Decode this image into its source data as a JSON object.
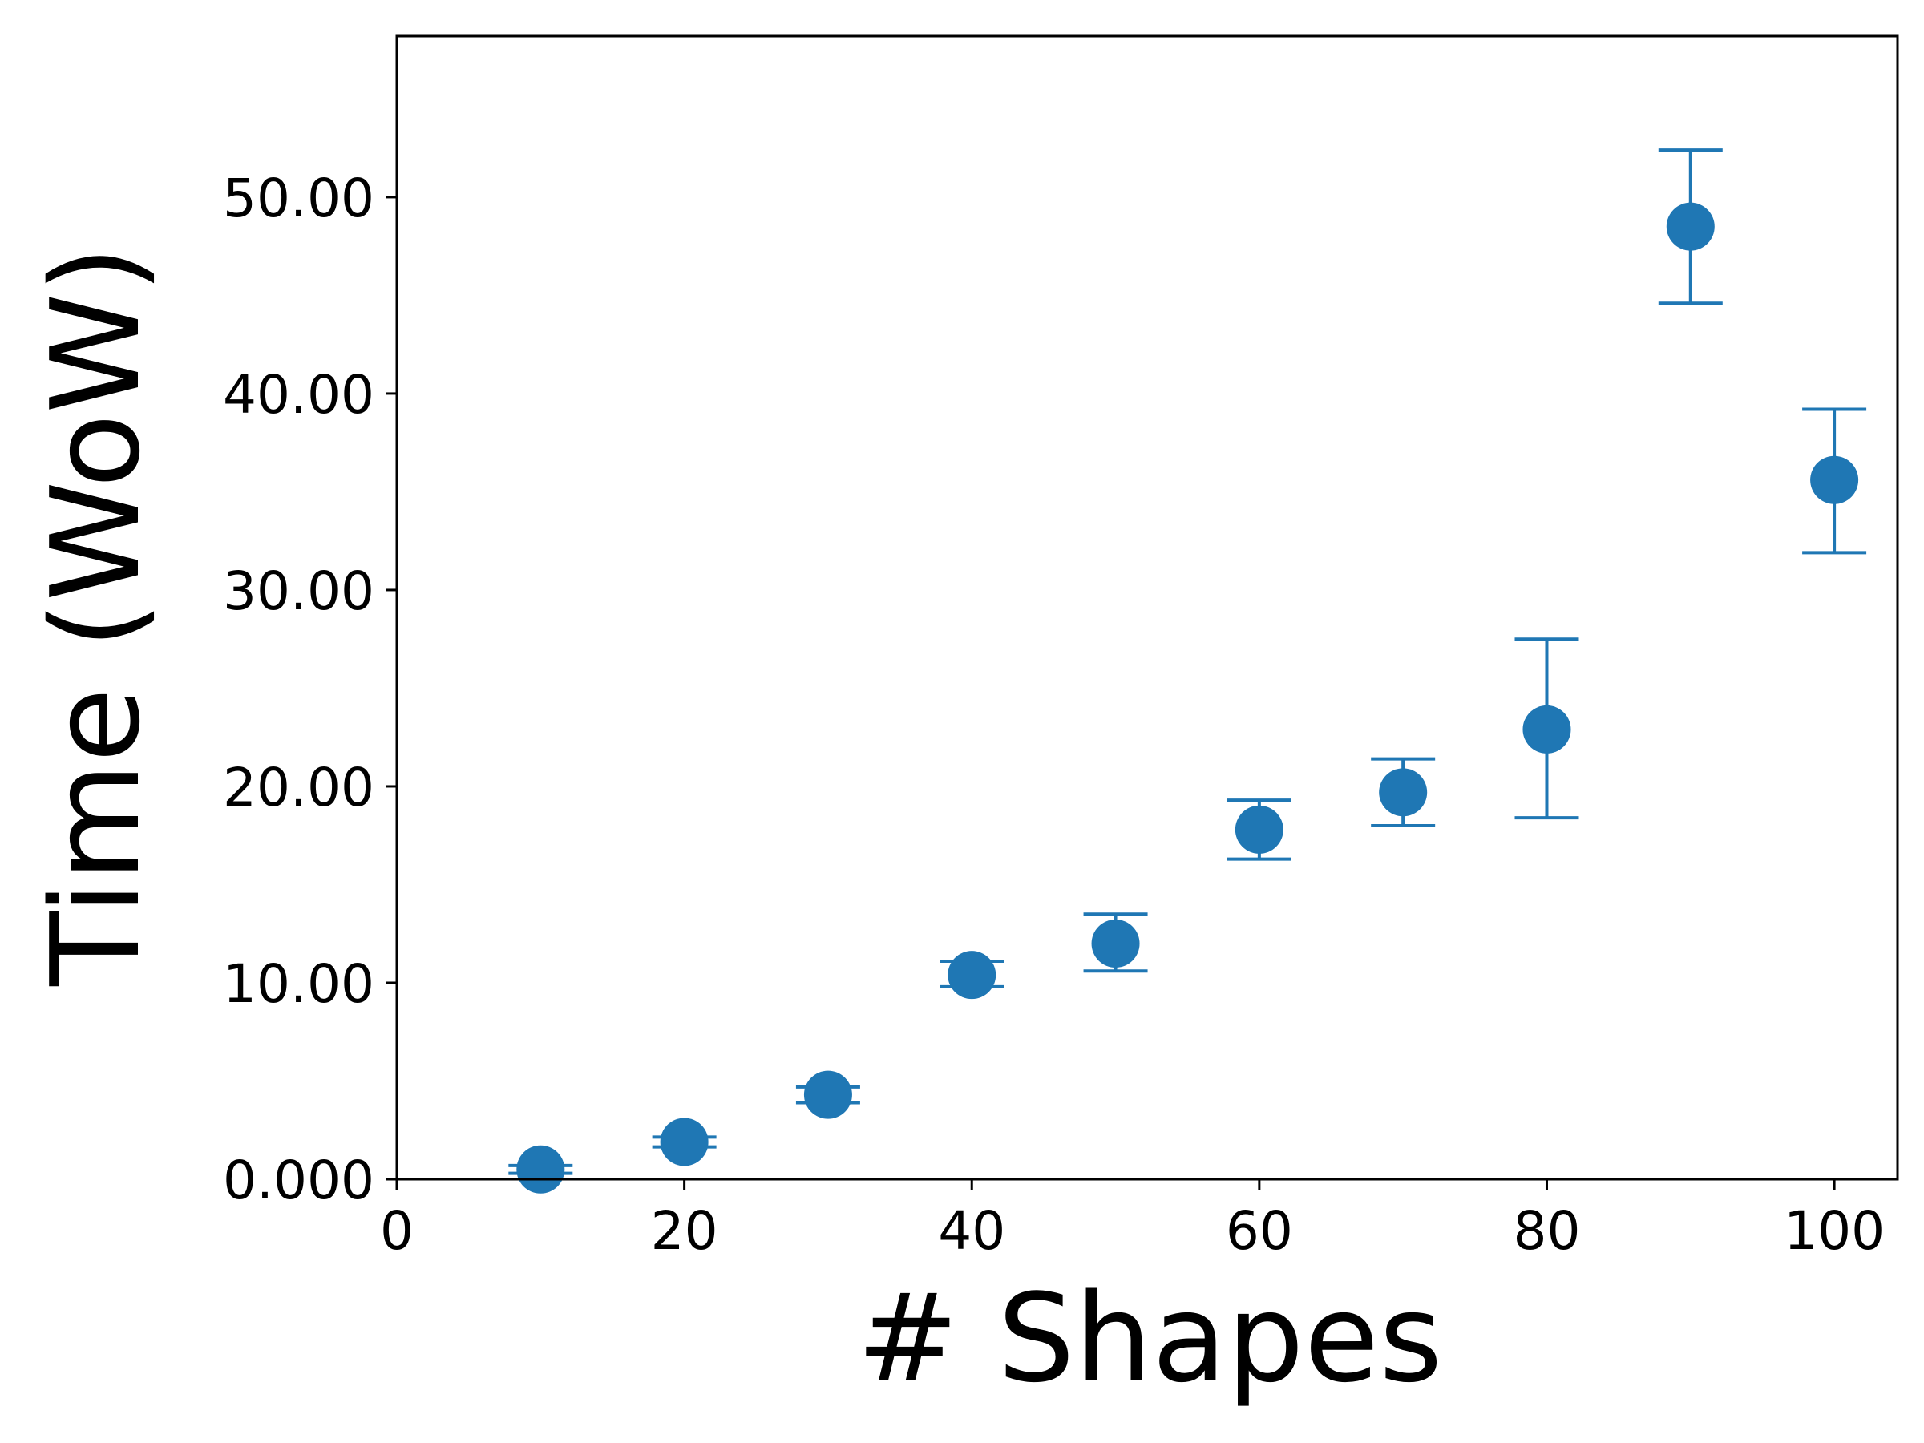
{
  "chart_data": {
    "type": "scatter",
    "title": "",
    "xlabel": "# Shapes",
    "ylabel": "Time (WoW)",
    "xlim": [
      0,
      104.4
    ],
    "ylim": [
      0,
      58.2
    ],
    "x_ticks": [
      0,
      20,
      40,
      60,
      80,
      100
    ],
    "x_tick_labels": [
      "0",
      "20",
      "40",
      "60",
      "80",
      "100"
    ],
    "y_ticks": [
      0,
      10,
      20,
      30,
      40,
      50
    ],
    "y_tick_labels": [
      "0.000",
      "10.00",
      "20.00",
      "30.00",
      "40.00",
      "50.00"
    ],
    "grid": false,
    "legend": "none",
    "color": "#1f77b4",
    "series": [
      {
        "x": [
          10,
          20,
          30,
          40,
          50,
          60,
          70,
          80,
          90,
          100
        ],
        "y": [
          0.5,
          1.9,
          4.3,
          10.4,
          12.0,
          17.8,
          19.7,
          22.9,
          48.5,
          35.6
        ],
        "err_low": [
          0.3,
          1.65,
          3.9,
          9.8,
          10.6,
          16.3,
          18.0,
          18.4,
          44.6,
          31.9
        ],
        "err_high": [
          0.7,
          2.15,
          4.7,
          11.1,
          13.5,
          19.3,
          21.4,
          27.5,
          52.4,
          39.2
        ]
      }
    ]
  }
}
